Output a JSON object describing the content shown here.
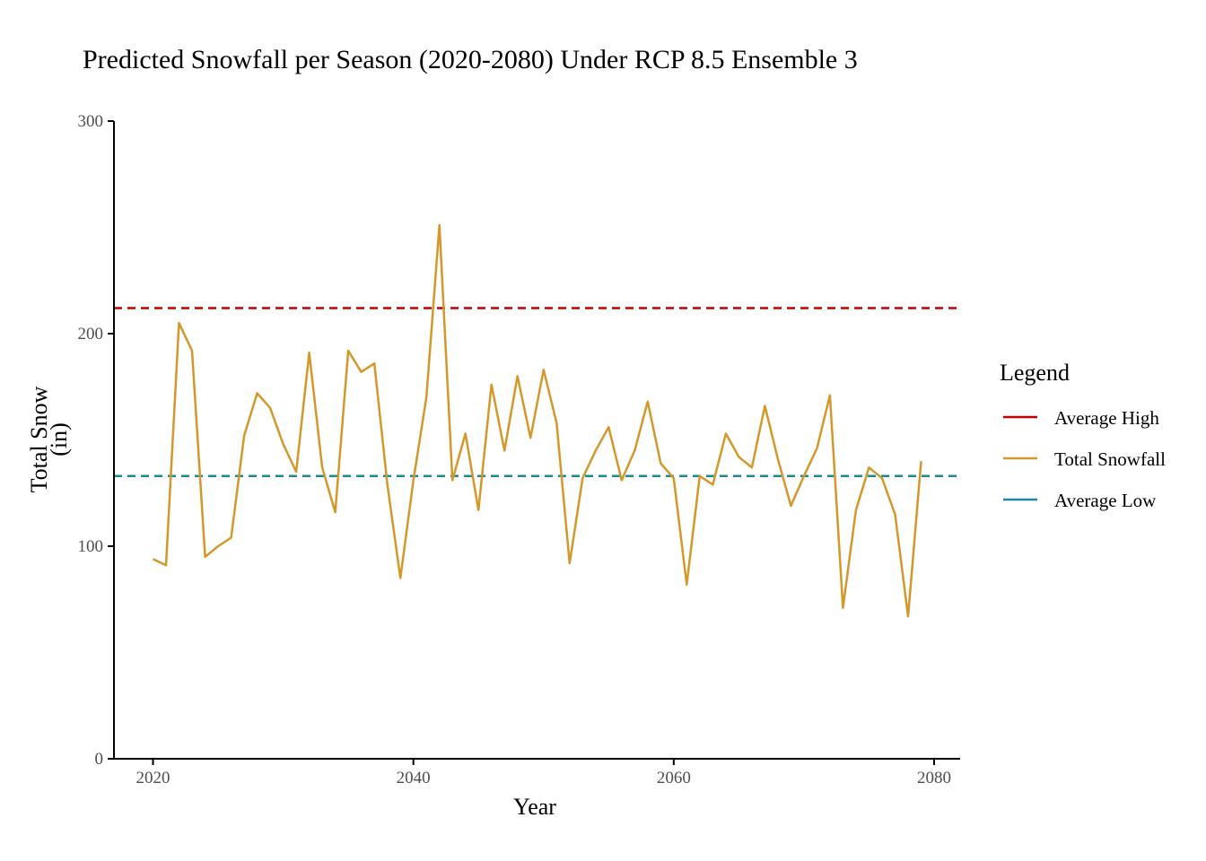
{
  "chart_data": {
    "type": "line",
    "title": "Predicted Snowfall per Season (2020-2080) Under RCP 8.5 Ensemble 3",
    "xlabel": "Year",
    "ylabel": "Total Snow\n(in)",
    "ylabel_lines": [
      "Total Snow",
      "(in)"
    ],
    "xlim": [
      2017,
      2082
    ],
    "ylim": [
      0,
      300
    ],
    "x_ticks": [
      2020,
      2040,
      2060,
      2080
    ],
    "y_ticks": [
      0,
      100,
      200,
      300
    ],
    "grid": false,
    "legend_position": "right",
    "legend": {
      "title": "Legend",
      "entries": [
        {
          "label": "Average High",
          "color": "#c00000"
        },
        {
          "label": "Total Snowfall",
          "color": "#d4982a"
        },
        {
          "label": "Average Low",
          "color": "#1a8a9a"
        }
      ]
    },
    "series": [
      {
        "name": "Total Snowfall",
        "color": "#d4982a",
        "style": "solid",
        "x": [
          2020,
          2021,
          2022,
          2023,
          2024,
          2025,
          2026,
          2027,
          2028,
          2029,
          2030,
          2031,
          2032,
          2033,
          2034,
          2035,
          2036,
          2037,
          2038,
          2039,
          2040,
          2041,
          2042,
          2043,
          2044,
          2045,
          2046,
          2047,
          2048,
          2049,
          2050,
          2051,
          2052,
          2053,
          2054,
          2055,
          2056,
          2057,
          2058,
          2059,
          2060,
          2061,
          2062,
          2063,
          2064,
          2065,
          2066,
          2067,
          2068,
          2069,
          2070,
          2071,
          2072,
          2073,
          2074,
          2075,
          2076,
          2077,
          2078,
          2079
        ],
        "values": [
          94,
          91,
          205,
          192,
          95,
          100,
          104,
          152,
          172,
          165,
          148,
          135,
          191,
          137,
          116,
          192,
          182,
          186,
          129,
          85,
          131,
          170,
          251,
          131,
          153,
          117,
          176,
          145,
          180,
          151,
          183,
          158,
          92,
          132,
          145,
          156,
          131,
          145,
          168,
          139,
          132,
          82,
          133,
          129,
          153,
          142,
          137,
          166,
          141,
          119,
          133,
          146,
          171,
          71,
          117,
          137,
          132,
          115,
          67,
          140
        ]
      },
      {
        "name": "Average High",
        "color": "#c00000",
        "style": "dashed",
        "value": 212
      },
      {
        "name": "Average Low",
        "color": "#1a8a9a",
        "style": "dashed",
        "value": 133
      }
    ]
  }
}
